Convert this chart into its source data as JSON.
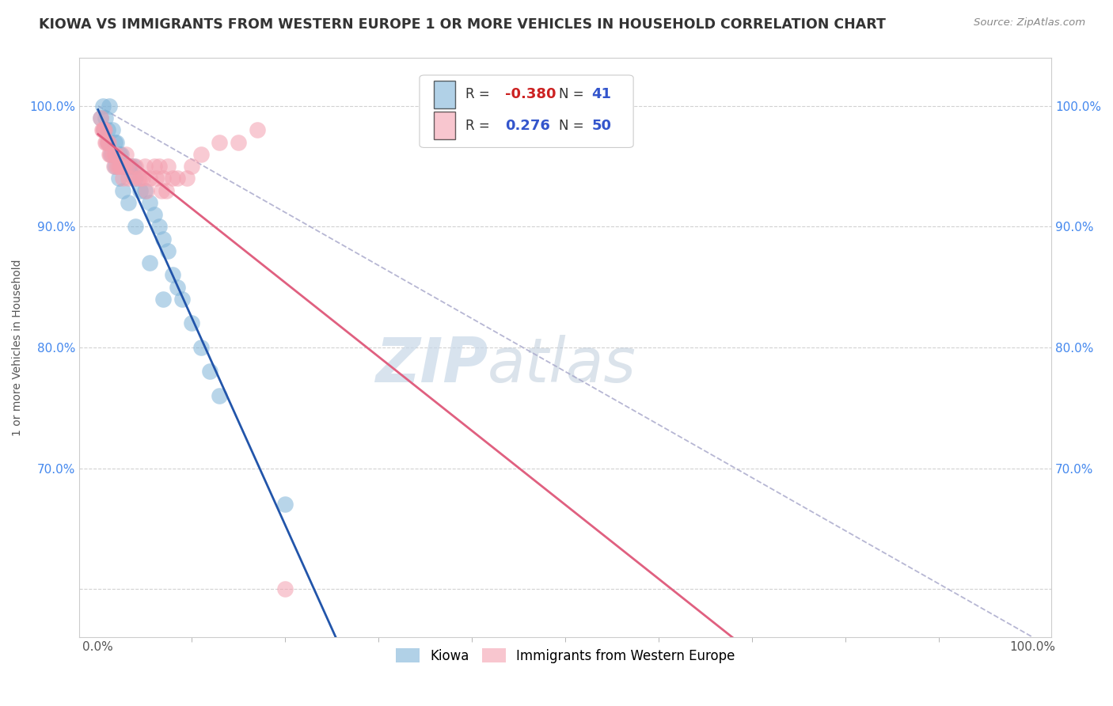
{
  "title": "KIOWA VS IMMIGRANTS FROM WESTERN EUROPE 1 OR MORE VEHICLES IN HOUSEHOLD CORRELATION CHART",
  "source": "Source: ZipAtlas.com",
  "ylabel": "1 or more Vehicles in Household",
  "watermark_zip": "ZIP",
  "watermark_atlas": "atlas",
  "legend_kiowa_R": "-0.380",
  "legend_kiowa_N": "41",
  "legend_immigrants_R": "0.276",
  "legend_immigrants_N": "50",
  "kiowa_color": "#7eb3d8",
  "immigrants_color": "#f4a0b0",
  "kiowa_line_color": "#2255aa",
  "immigrants_line_color": "#e06080",
  "diag_color": "#aaaacc",
  "background_color": "#ffffff",
  "grid_color": "#cccccc",
  "title_fontsize": 12.5,
  "tick_fontsize": 11,
  "ylabel_fontsize": 10,
  "xlim": [
    -2,
    102
  ],
  "ylim": [
    56,
    104
  ],
  "yticks": [
    60,
    70,
    80,
    90,
    100
  ],
  "ytick_labels_left": [
    "",
    "70.0%",
    "80.0%",
    "90.0%",
    "100.0%"
  ],
  "ytick_labels_right": [
    "70.0%",
    "80.0%",
    "90.0%",
    "100.0%"
  ],
  "yticks_right": [
    70,
    80,
    90,
    100
  ],
  "kiowa_x": [
    0.5,
    0.8,
    1.0,
    1.2,
    1.5,
    1.8,
    2.0,
    2.3,
    2.5,
    2.8,
    3.0,
    3.3,
    3.5,
    3.8,
    4.0,
    4.5,
    5.0,
    5.5,
    6.0,
    6.5,
    7.0,
    7.5,
    8.0,
    8.5,
    9.0,
    10.0,
    11.0,
    12.0,
    13.0,
    0.3,
    0.6,
    1.0,
    1.4,
    1.8,
    2.2,
    2.6,
    3.2,
    4.0,
    5.5,
    7.0,
    20.0
  ],
  "kiowa_y": [
    100,
    99,
    98,
    100,
    98,
    97,
    97,
    96,
    96,
    95,
    95,
    95,
    95,
    95,
    94,
    93,
    93,
    92,
    91,
    90,
    89,
    88,
    86,
    85,
    84,
    82,
    80,
    78,
    76,
    99,
    98,
    97,
    96,
    95,
    94,
    93,
    92,
    90,
    87,
    84,
    67
  ],
  "immigrants_x": [
    0.3,
    0.5,
    0.7,
    0.8,
    1.0,
    1.2,
    1.5,
    1.8,
    2.0,
    2.3,
    2.5,
    2.8,
    3.0,
    3.5,
    4.0,
    4.5,
    5.0,
    5.5,
    6.0,
    6.5,
    7.0,
    7.5,
    8.0,
    0.4,
    0.9,
    1.3,
    1.7,
    2.1,
    2.6,
    3.2,
    3.8,
    4.3,
    5.2,
    6.2,
    7.3,
    8.5,
    9.5,
    10.0,
    11.0,
    13.0,
    15.0,
    17.0,
    0.6,
    1.1,
    1.9,
    2.4,
    3.1,
    4.8,
    6.8,
    20.0
  ],
  "immigrants_y": [
    99,
    98,
    98,
    97,
    97,
    96,
    96,
    96,
    95,
    95,
    95,
    95,
    96,
    95,
    95,
    94,
    95,
    94,
    95,
    95,
    94,
    95,
    94,
    98,
    97,
    96,
    95,
    95,
    94,
    94,
    94,
    94,
    93,
    94,
    93,
    94,
    94,
    95,
    96,
    97,
    97,
    98,
    98,
    97,
    96,
    95,
    95,
    94,
    93,
    60
  ]
}
